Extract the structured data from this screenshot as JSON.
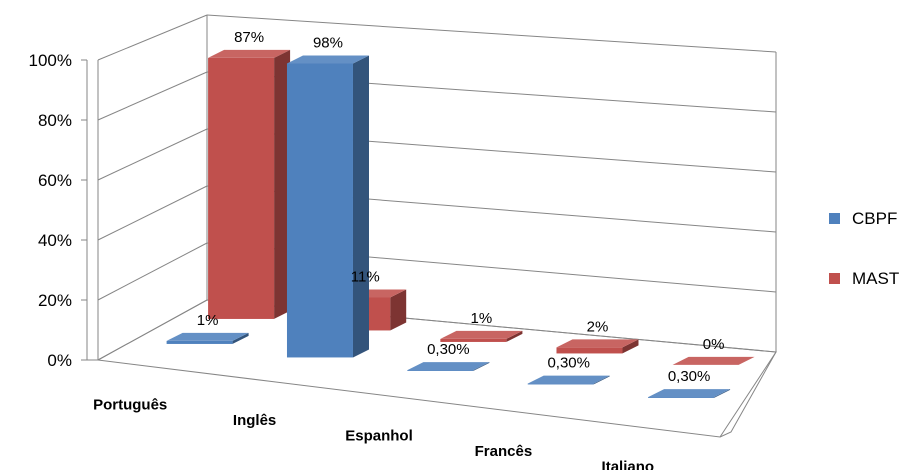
{
  "chart_data": {
    "type": "bar",
    "title": "",
    "xlabel": "",
    "ylabel": "",
    "ylim": [
      0,
      100
    ],
    "y_ticks": [
      "0%",
      "20%",
      "40%",
      "60%",
      "80%",
      "100%"
    ],
    "grid": true,
    "legend_position": "right",
    "categories": [
      "Português",
      "Inglês",
      "Espanhol",
      "Francês",
      "Italiano"
    ],
    "series": [
      {
        "name": "CBPF",
        "color": "#4f81bd",
        "values": [
          1,
          98,
          0.3,
          0.3,
          0.3
        ],
        "labels": [
          "1%",
          "98%",
          "0,30%",
          "0,30%",
          "0,30%"
        ]
      },
      {
        "name": "MAST",
        "color": "#c0504d",
        "values": [
          87,
          11,
          1,
          2,
          0
        ],
        "labels": [
          "87%",
          "11%",
          "1%",
          "2%",
          "0%"
        ]
      }
    ]
  }
}
